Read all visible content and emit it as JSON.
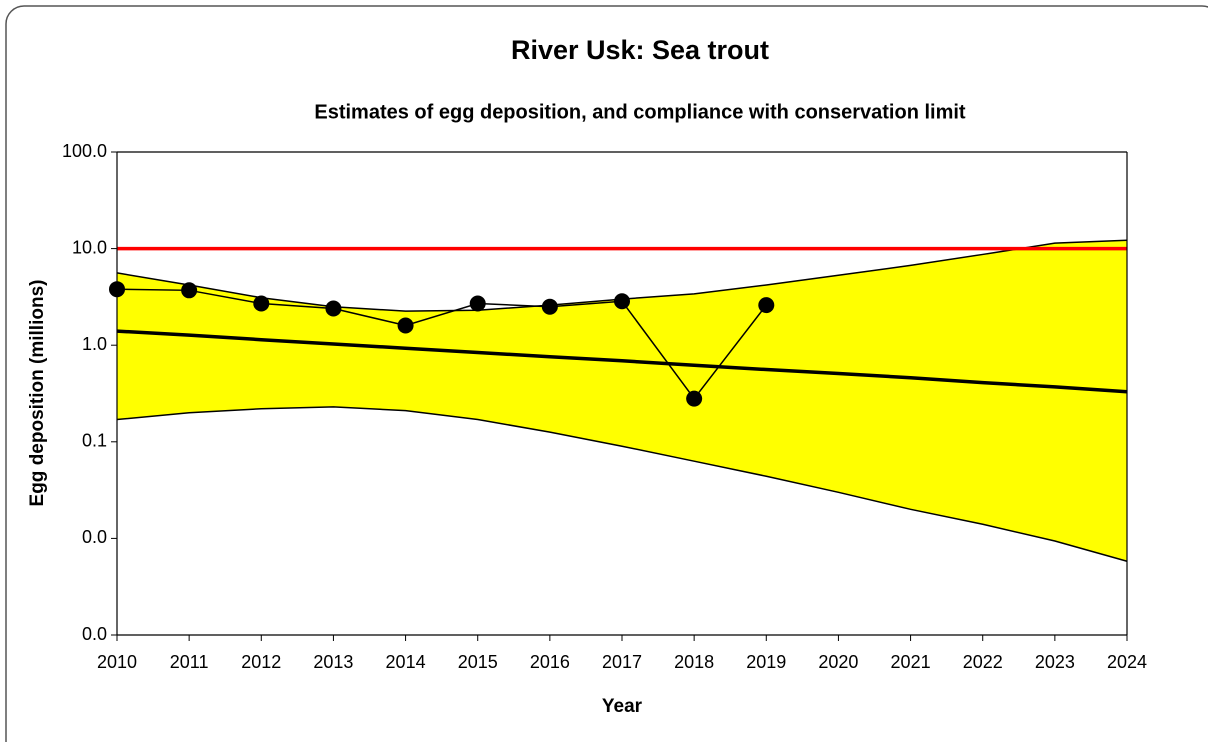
{
  "chart_data": {
    "type": "line",
    "title": "River Usk: Sea trout",
    "subtitle": "Estimates of egg deposition, and compliance with conservation limit",
    "xlabel": "Year",
    "ylabel": "Egg deposition (millions)",
    "x": [
      2010,
      2011,
      2012,
      2013,
      2014,
      2015,
      2016,
      2017,
      2018,
      2019,
      2020,
      2021,
      2022,
      2023,
      2024
    ],
    "xlim": [
      2010,
      2024
    ],
    "xticks": [
      2010,
      2011,
      2012,
      2013,
      2014,
      2015,
      2016,
      2017,
      2018,
      2019,
      2020,
      2021,
      2022,
      2023,
      2024
    ],
    "ylim": [
      0.001,
      100
    ],
    "log_y": true,
    "yticks": [
      {
        "value": 0.001,
        "label": "0.0"
      },
      {
        "value": 0.01,
        "label": "0.0"
      },
      {
        "value": 0.1,
        "label": "0.1"
      },
      {
        "value": 1,
        "label": "1.0"
      },
      {
        "value": 10,
        "label": "10.0"
      },
      {
        "value": 100,
        "label": "100.0"
      }
    ],
    "band": {
      "color": "#ffff00",
      "upper": [
        5.6,
        4.2,
        3.1,
        2.5,
        2.25,
        2.3,
        2.6,
        3.0,
        3.4,
        4.2,
        5.3,
        6.7,
        8.7,
        11.4,
        12.2
      ],
      "lower": [
        0.17,
        0.2,
        0.22,
        0.23,
        0.21,
        0.17,
        0.126,
        0.09,
        0.063,
        0.044,
        0.03,
        0.02,
        0.014,
        0.0094,
        0.0058
      ]
    },
    "trend": {
      "color": "#000000",
      "values": [
        1.4,
        1.27,
        1.14,
        1.03,
        0.93,
        0.84,
        0.76,
        0.69,
        0.62,
        0.56,
        0.51,
        0.46,
        0.41,
        0.37,
        0.33
      ]
    },
    "limit": {
      "color": "#ff0000",
      "value": 10
    },
    "series": [
      {
        "color": "#000000",
        "values": [
          3.8,
          3.7,
          2.7,
          2.4,
          1.6,
          2.7,
          2.5,
          2.85,
          0.28,
          2.6,
          null,
          null,
          null,
          null,
          null
        ]
      }
    ]
  }
}
